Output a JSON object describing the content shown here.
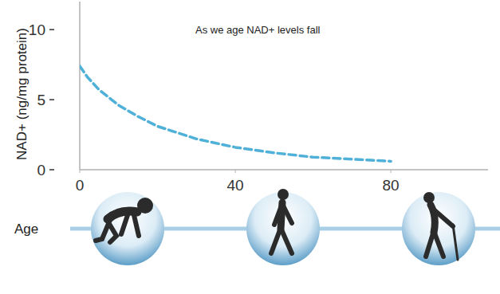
{
  "chart_data": {
    "type": "line",
    "title": "As we age NAD+ levels fall",
    "x_label": "Age",
    "y_label": "NAD+ (ng/mg protein)",
    "x": [
      0,
      2,
      5,
      10,
      15,
      20,
      30,
      40,
      50,
      60,
      70,
      80
    ],
    "series": [
      {
        "color": "#4fb0d8",
        "line_style": "dashed",
        "values": [
          7.4,
          6.6,
          5.7,
          4.6,
          3.8,
          3.1,
          2.2,
          1.6,
          1.2,
          0.9,
          0.75,
          0.6
        ]
      }
    ],
    "xlim": [
      0,
      105
    ],
    "xticks": [
      0,
      40,
      80
    ],
    "ylim": [
      0,
      12
    ],
    "yticks": [
      0,
      5,
      10
    ]
  }
}
